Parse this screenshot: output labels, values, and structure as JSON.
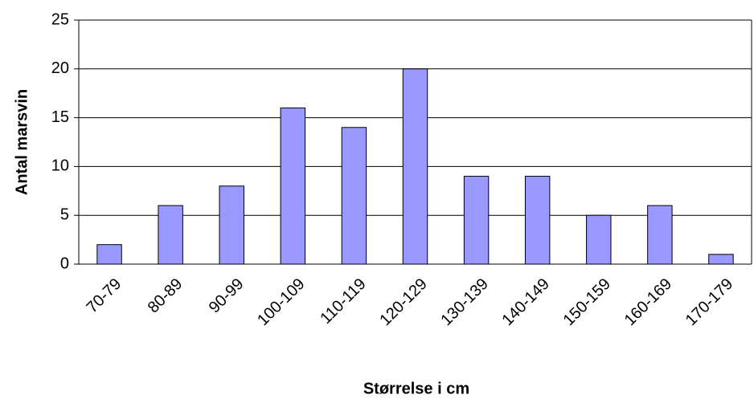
{
  "chart_data": {
    "type": "bar",
    "xlabel": "Størrelse i cm",
    "ylabel": "Antal marsvin",
    "categories": [
      "70-79",
      "80-89",
      "90-99",
      "100-109",
      "110-119",
      "120-129",
      "130-139",
      "140-149",
      "150-159",
      "160-169",
      "170-179"
    ],
    "values": [
      2,
      6,
      8,
      16,
      14,
      20,
      9,
      9,
      5,
      6,
      1
    ],
    "color": "#9999ff",
    "ylim": [
      0,
      25
    ],
    "yticks": [
      0,
      5,
      10,
      15,
      20,
      25
    ],
    "grid": true
  }
}
